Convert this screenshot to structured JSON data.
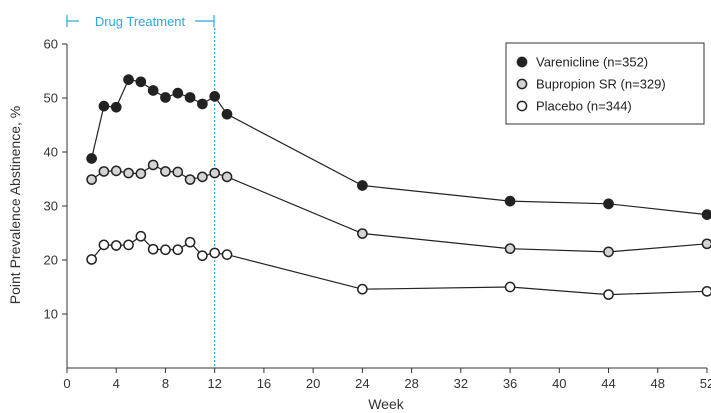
{
  "chart_data": {
    "type": "line",
    "title": "",
    "xlabel": "Week",
    "ylabel": "Point Prevalence Abstinence, %",
    "xlim": [
      0,
      52
    ],
    "ylim": [
      0,
      60
    ],
    "x_ticks": [
      0,
      4,
      8,
      12,
      16,
      20,
      24,
      28,
      32,
      36,
      40,
      44,
      48,
      52
    ],
    "y_ticks": [
      10,
      20,
      30,
      40,
      50,
      60
    ],
    "grid": false,
    "legend_position": "top-right",
    "annotation": {
      "label": "Drug Treatment",
      "x_range": [
        0,
        12
      ],
      "vline_x": 12,
      "color": "#29a8e0"
    },
    "series": [
      {
        "name": "Varenicline (n=352)",
        "marker_fill": "#222222",
        "marker_stroke": "#222222",
        "x": [
          2,
          3,
          4,
          5,
          6,
          7,
          8,
          9,
          10,
          11,
          12,
          13,
          24,
          36,
          44,
          52
        ],
        "values": [
          38.8,
          48.5,
          48.3,
          53.4,
          53.0,
          51.4,
          50.1,
          50.9,
          50.1,
          48.9,
          50.3,
          47.0,
          33.8,
          30.9,
          30.4,
          28.4
        ]
      },
      {
        "name": "Bupropion SR (n=329)",
        "marker_fill": "#d4d4d4",
        "marker_stroke": "#222222",
        "x": [
          2,
          3,
          4,
          5,
          6,
          7,
          8,
          9,
          10,
          11,
          12,
          13,
          24,
          36,
          44,
          52
        ],
        "values": [
          34.9,
          36.4,
          36.5,
          36.1,
          36.0,
          37.6,
          36.4,
          36.3,
          34.9,
          35.4,
          36.1,
          35.4,
          24.9,
          22.1,
          21.5,
          23.0
        ]
      },
      {
        "name": "Placebo (n=344)",
        "marker_fill": "#ffffff",
        "marker_stroke": "#222222",
        "x": [
          2,
          3,
          4,
          5,
          6,
          7,
          8,
          9,
          10,
          11,
          12,
          13,
          24,
          36,
          44,
          52
        ],
        "values": [
          20.1,
          22.8,
          22.7,
          22.8,
          24.4,
          22.0,
          21.9,
          21.9,
          23.3,
          20.8,
          21.3,
          21.0,
          14.6,
          15.0,
          13.6,
          14.2
        ]
      }
    ]
  }
}
